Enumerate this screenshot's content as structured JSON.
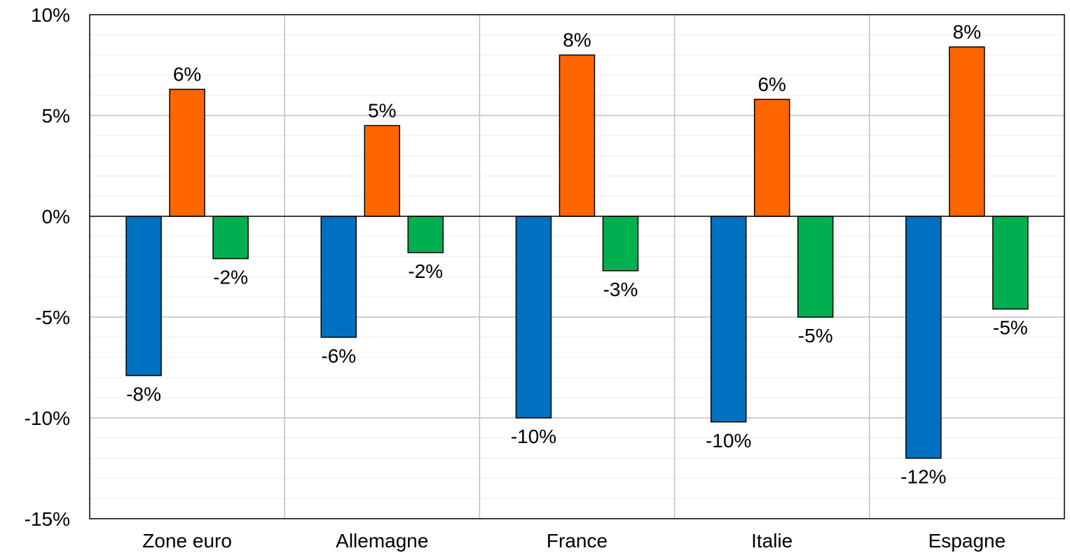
{
  "chart_data": {
    "type": "bar",
    "categories": [
      "Zone euro",
      "Allemagne",
      "France",
      "Italie",
      "Espagne"
    ],
    "series": [
      {
        "color": "#0070C0",
        "values": [
          -7.9,
          -6.0,
          -10.0,
          -10.2,
          -12.0
        ],
        "labels": [
          "-8%",
          "-6%",
          "-10%",
          "-10%",
          "-12%"
        ]
      },
      {
        "color": "#FF6600",
        "values": [
          6.3,
          4.5,
          8.0,
          5.8,
          8.4
        ],
        "labels": [
          "6%",
          "5%",
          "8%",
          "6%",
          "8%"
        ]
      },
      {
        "color": "#00B050",
        "values": [
          -2.1,
          -1.8,
          -2.7,
          -5.0,
          -4.6
        ],
        "labels": [
          "-2%",
          "-2%",
          "-3%",
          "-5%",
          "-5%"
        ]
      }
    ],
    "ylim": [
      -15,
      10
    ],
    "yticks": [
      10,
      5,
      0,
      -5,
      -10,
      -15
    ],
    "ytick_labels": [
      "10%",
      "5%",
      "0%",
      "-5%",
      "-10%",
      "-15%"
    ],
    "grid": true,
    "legend": "none"
  }
}
